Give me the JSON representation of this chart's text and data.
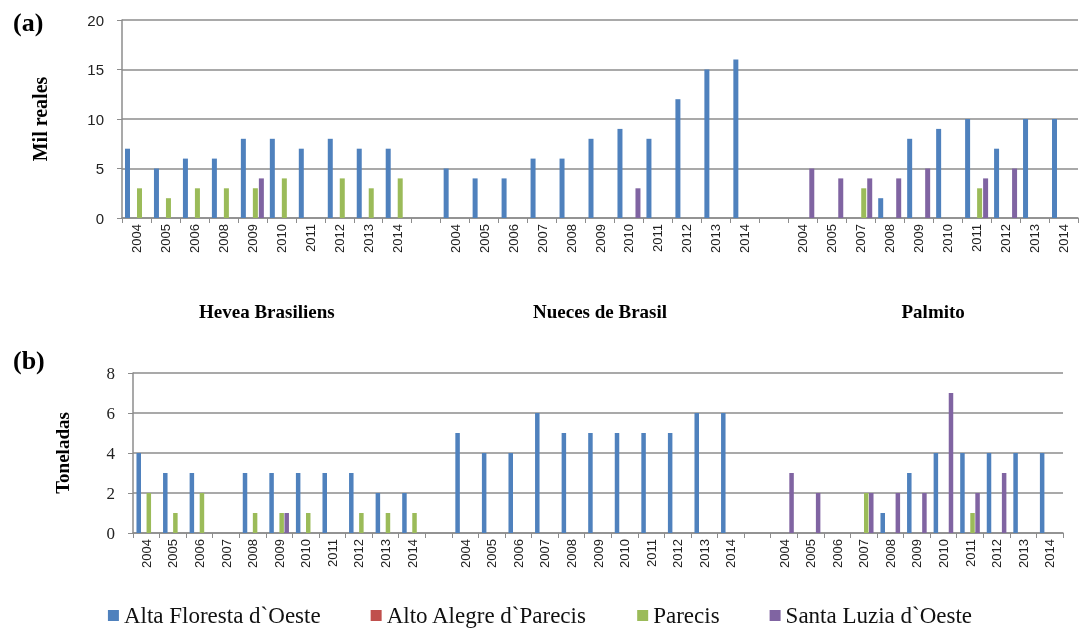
{
  "chart_data": [
    {
      "type": "bar",
      "title": "(a)",
      "ylabel": "Mil reales",
      "categories": [
        "2004",
        "2005",
        "2006",
        "2008",
        "2009",
        "2010",
        "2011",
        "2012",
        "2013",
        "2014",
        null,
        "2004",
        "2005",
        "2006",
        "2007",
        "2008",
        "2009",
        "2010",
        "2011",
        "2012",
        "2013",
        "2014",
        null,
        "2004",
        "2005",
        "2007",
        "2008",
        "2009",
        "2010",
        "2011",
        "2012",
        "2013",
        "2014"
      ],
      "series": [
        {
          "color": "#4f81bd",
          "values": [
            7,
            5,
            6,
            6,
            8,
            8,
            7,
            8,
            7,
            7,
            null,
            5,
            4,
            4,
            6,
            6,
            8,
            9,
            8,
            12,
            15,
            16,
            null,
            null,
            null,
            null,
            2,
            8,
            9,
            10,
            7,
            10,
            10
          ]
        },
        {
          "color": "#c0504d",
          "values": [
            null,
            null,
            null,
            null,
            null,
            null,
            null,
            null,
            null,
            null,
            null,
            null,
            null,
            null,
            null,
            null,
            null,
            null,
            null,
            null,
            null,
            null,
            null,
            null,
            null,
            null,
            null,
            null,
            null,
            null,
            null,
            null,
            null
          ]
        },
        {
          "color": "#9bbb59",
          "values": [
            3,
            2,
            3,
            3,
            3,
            4,
            null,
            4,
            3,
            4,
            null,
            null,
            null,
            null,
            null,
            null,
            null,
            null,
            null,
            null,
            null,
            null,
            null,
            null,
            null,
            3,
            null,
            null,
            null,
            3,
            null,
            null,
            null
          ]
        },
        {
          "color": "#8064a2",
          "values": [
            null,
            null,
            null,
            null,
            4,
            null,
            null,
            null,
            null,
            null,
            null,
            null,
            null,
            null,
            null,
            null,
            null,
            3,
            null,
            null,
            null,
            null,
            null,
            5,
            4,
            4,
            4,
            5,
            null,
            4,
            5,
            null,
            null
          ]
        }
      ],
      "ylim": [
        0,
        20
      ],
      "yticks": [
        0,
        5,
        10,
        15,
        20
      ],
      "grid": "y",
      "annotations": [
        "Hevea Brasiliens",
        "Nueces de Brasil",
        "Palmito"
      ]
    },
    {
      "type": "bar",
      "title": "(b)",
      "ylabel": "Toneladas",
      "categories": [
        "2004",
        "2005",
        "2006",
        "2007",
        "2008",
        "2009",
        "2010",
        "2011",
        "2012",
        "2013",
        "2014",
        null,
        "2004",
        "2005",
        "2006",
        "2007",
        "2008",
        "2009",
        "2010",
        "2011",
        "2012",
        "2013",
        "2014",
        null,
        "2004",
        "2005",
        "2006",
        "2007",
        "2008",
        "2009",
        "2010",
        "2011",
        "2012",
        "2013",
        "2014"
      ],
      "series": [
        {
          "name": "Alta Floresta d`Oeste",
          "color": "#4f81bd",
          "values": [
            4,
            3,
            3,
            null,
            3,
            3,
            3,
            3,
            3,
            2,
            2,
            null,
            5,
            4,
            4,
            6,
            5,
            5,
            5,
            5,
            5,
            6,
            6,
            null,
            null,
            null,
            null,
            null,
            1,
            3,
            4,
            4,
            4,
            4,
            4
          ]
        },
        {
          "name": "Alto Alegre d`Parecis",
          "color": "#c0504d",
          "values": [
            null,
            null,
            null,
            null,
            null,
            null,
            null,
            null,
            null,
            null,
            null,
            null,
            null,
            null,
            null,
            null,
            null,
            null,
            null,
            null,
            null,
            null,
            null,
            null,
            null,
            null,
            null,
            null,
            null,
            null,
            null,
            null,
            null,
            null,
            null
          ]
        },
        {
          "name": "Parecis",
          "color": "#9bbb59",
          "values": [
            2,
            1,
            2,
            null,
            1,
            1,
            1,
            null,
            1,
            1,
            1,
            null,
            null,
            null,
            null,
            null,
            null,
            null,
            null,
            null,
            null,
            null,
            null,
            null,
            null,
            null,
            null,
            2,
            null,
            null,
            null,
            1,
            null,
            null,
            null
          ]
        },
        {
          "name": "Santa Luzia d`Oeste",
          "color": "#8064a2",
          "values": [
            null,
            null,
            null,
            null,
            null,
            1,
            null,
            null,
            null,
            null,
            null,
            null,
            null,
            null,
            null,
            null,
            null,
            null,
            null,
            null,
            null,
            null,
            null,
            null,
            3,
            2,
            null,
            2,
            2,
            2,
            7,
            2,
            3,
            null,
            null
          ]
        }
      ],
      "ylim": [
        0,
        8
      ],
      "yticks": [
        0,
        2,
        4,
        6,
        8
      ],
      "grid": "y",
      "legend": "bottom"
    }
  ]
}
